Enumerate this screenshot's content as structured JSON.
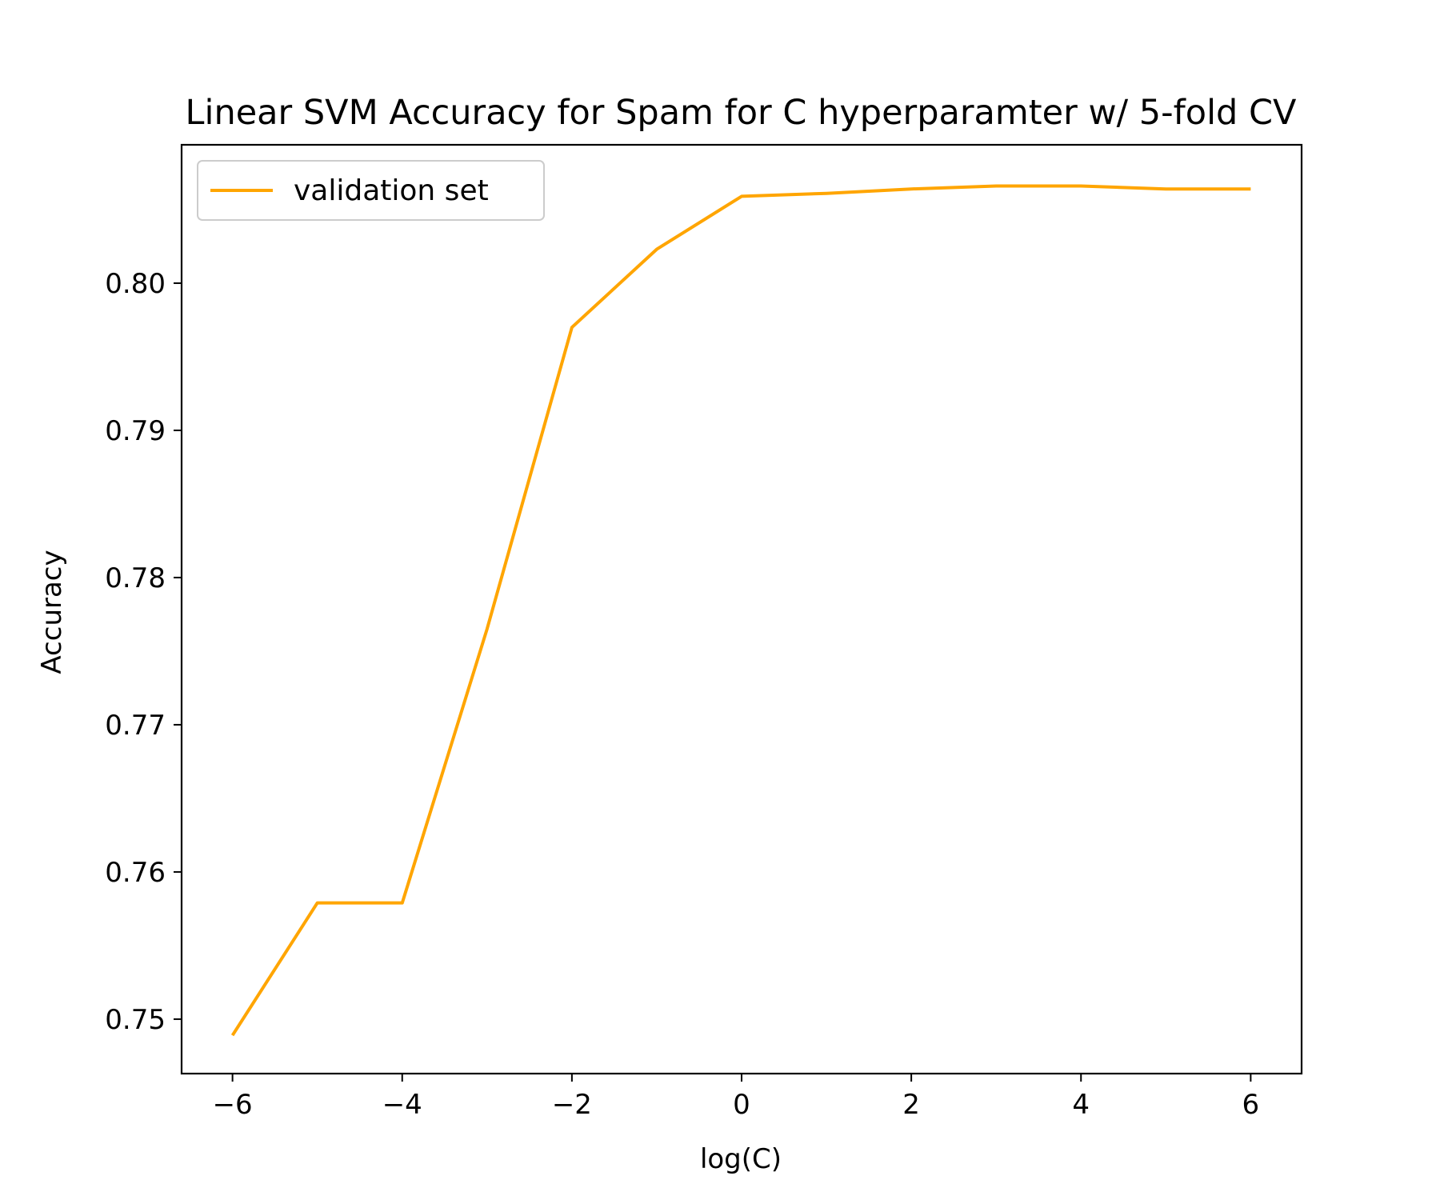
{
  "chart_data": {
    "type": "line",
    "title": "Linear SVM Accuracy for Spam for C hyperparamter w/ 5-fold CV",
    "xlabel": "log(C)",
    "ylabel": "Accuracy",
    "xlim": [
      -6.6,
      6.6
    ],
    "ylim": [
      0.7463,
      0.8094
    ],
    "xticks": [
      -6,
      -4,
      -2,
      0,
      2,
      4,
      6
    ],
    "xtick_labels": [
      "−6",
      "−4",
      "−2",
      "0",
      "2",
      "4",
      "6"
    ],
    "yticks": [
      0.75,
      0.76,
      0.77,
      0.78,
      0.79,
      0.8
    ],
    "ytick_labels": [
      "0.75",
      "0.76",
      "0.77",
      "0.78",
      "0.79",
      "0.80"
    ],
    "grid": false,
    "legend": "upper left",
    "series": [
      {
        "name": "validation set",
        "color": "#FFA500",
        "x": [
          -6,
          -5,
          -4,
          -3,
          -2,
          -1,
          0,
          1,
          2,
          3,
          4,
          5,
          6
        ],
        "y": [
          0.7489,
          0.7579,
          0.7579,
          0.7765,
          0.797,
          0.8023,
          0.8059,
          0.8061,
          0.8064,
          0.8066,
          0.8066,
          0.8064,
          0.8064
        ]
      }
    ]
  }
}
